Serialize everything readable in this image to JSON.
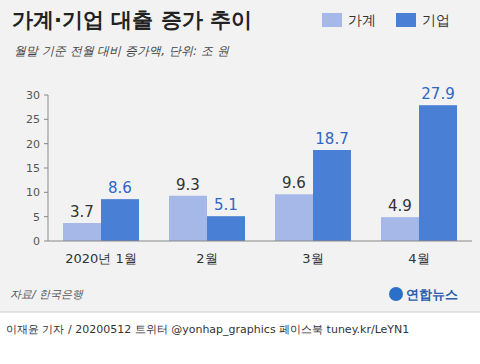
{
  "chart_data": {
    "type": "bar",
    "title": "가계·기업 대출 증가 추이",
    "subtitle": "월말 기준 전월 대비 증가액, 단위: 조 원",
    "categories": [
      "2020년 1월",
      "2월",
      "3월",
      "4월"
    ],
    "series": [
      {
        "name": "가계",
        "color": "#a6b8e8",
        "values": [
          3.7,
          9.3,
          9.6,
          4.9
        ]
      },
      {
        "name": "기업",
        "color": "#4a7fd6",
        "values": [
          8.6,
          5.1,
          18.7,
          27.9
        ]
      }
    ],
    "ylim": [
      0,
      30
    ],
    "yticks": [
      0,
      5,
      10,
      15,
      20,
      25,
      30
    ],
    "grid": false,
    "legend": "top-right",
    "data_labels": true,
    "annotations": [
      "자료/ 한국은행",
      "연합뉴스",
      "이재윤 기자 / 20200512  트위터 @yonhap_graphics  페이스북 tuney.kr/LeYN1"
    ]
  }
}
